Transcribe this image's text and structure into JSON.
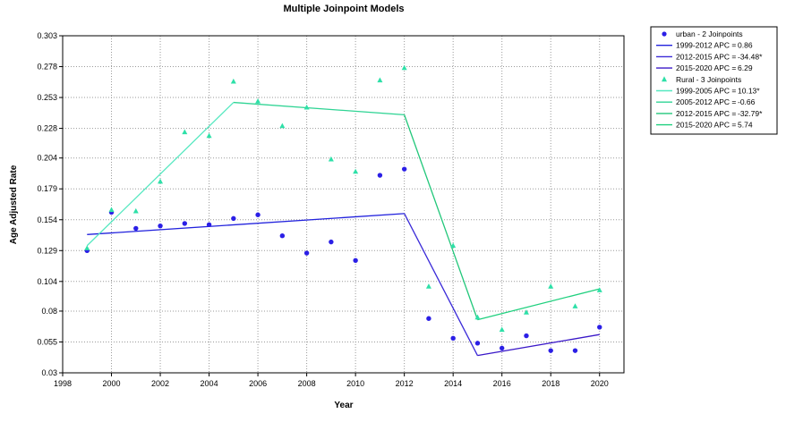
{
  "chart_data": {
    "type": "scatter",
    "title": "Multiple Joinpoint Models",
    "xlabel": "Year",
    "ylabel": "Age Adjusted Rate",
    "xlim": [
      1998,
      2021
    ],
    "ylim": [
      0.03,
      0.303
    ],
    "x_ticks": [
      "1998",
      "2000",
      "2002",
      "2004",
      "2006",
      "2008",
      "2010",
      "2012",
      "2014",
      "2016",
      "2018",
      "2020"
    ],
    "y_ticks": [
      "0.303",
      "0.278",
      "0.253",
      "0.228",
      "0.204",
      "0.179",
      "0.154",
      "0.129",
      "0.104",
      "0.08",
      "0.055",
      "0.03"
    ],
    "grid": true,
    "legend_position": "right",
    "series": [
      {
        "name": "urban - 2 Joinpoints",
        "marker": "circle",
        "color": "#2b1fe6",
        "observed": {
          "x": [
            1999,
            2000,
            2001,
            2002,
            2003,
            2004,
            2005,
            2006,
            2007,
            2008,
            2009,
            2010,
            2011,
            2012,
            2013,
            2014,
            2015,
            2016,
            2017,
            2018,
            2019,
            2020
          ],
          "y": [
            0.129,
            0.16,
            0.147,
            0.149,
            0.151,
            0.15,
            0.155,
            0.158,
            0.141,
            0.127,
            0.136,
            0.121,
            0.19,
            0.195,
            0.074,
            0.058,
            0.054,
            0.05,
            0.06,
            0.048,
            0.048,
            0.067
          ]
        },
        "fit": {
          "x": [
            1999,
            2012,
            2015,
            2020
          ],
          "y": [
            0.142,
            0.159,
            0.044,
            0.061
          ]
        },
        "segments": [
          {
            "label": "1999-2012 APC =",
            "value": "0.86",
            "color": "#2222dd"
          },
          {
            "label": "2012-2015 APC =",
            "value": "-34.48*",
            "color": "#3a2ad8"
          },
          {
            "label": "2015-2020 APC =",
            "value": "6.29",
            "color": "#3a18c8"
          }
        ]
      },
      {
        "name": "Rural - 3 Joinpoints",
        "marker": "triangle",
        "color": "#2ee0a8",
        "observed": {
          "x": [
            1999,
            2000,
            2001,
            2002,
            2003,
            2004,
            2005,
            2006,
            2007,
            2008,
            2009,
            2010,
            2011,
            2012,
            2013,
            2014,
            2015,
            2016,
            2017,
            2018,
            2019,
            2020
          ],
          "y": [
            0.131,
            0.162,
            0.161,
            0.185,
            0.225,
            0.222,
            0.266,
            0.25,
            0.23,
            0.245,
            0.203,
            0.193,
            0.267,
            0.277,
            0.1,
            0.133,
            0.075,
            0.065,
            0.079,
            0.1,
            0.084,
            0.097
          ]
        },
        "fit": {
          "x": [
            1999,
            2005,
            2012,
            2015,
            2020
          ],
          "y": [
            0.133,
            0.249,
            0.239,
            0.073,
            0.098
          ]
        },
        "segments": [
          {
            "label": "1999-2005 APC =",
            "value": "10.13*",
            "color": "#55e8c0"
          },
          {
            "label": "2005-2012 APC =",
            "value": "-0.66",
            "color": "#2fd494"
          },
          {
            "label": "2012-2015 APC =",
            "value": "-32.79*",
            "color": "#22c77a"
          },
          {
            "label": "2015-2020 APC =",
            "value": "5.74",
            "color": "#1fd07e"
          }
        ]
      }
    ]
  }
}
